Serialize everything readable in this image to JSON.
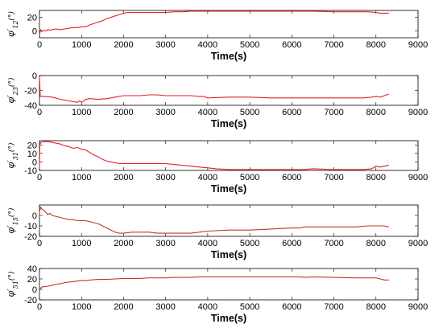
{
  "chart_data": [
    {
      "type": "line",
      "ylabel": "φ′12(°)",
      "xlabel": "Time(s)",
      "xlim": [
        0,
        9000
      ],
      "ylim": [
        -10,
        30
      ],
      "yticks": [
        0,
        20
      ],
      "xticks": [
        0,
        1000,
        2000,
        3000,
        4000,
        5000,
        6000,
        7000,
        8000,
        9000
      ],
      "color": "#e8202a",
      "series": [
        {
          "x": [
            0,
            30,
            60,
            100,
            150,
            200,
            250,
            300,
            400,
            500,
            600,
            700,
            800,
            900,
            1000,
            1100,
            1200,
            1300,
            1400,
            1500,
            1600,
            1700,
            1800,
            1900,
            2000,
            2100,
            2200,
            2400,
            2600,
            2800,
            3000,
            3200,
            3400,
            3600,
            3800,
            4000,
            4500,
            5000,
            5500,
            6000,
            6300,
            6500,
            7000,
            7500,
            7800,
            8000,
            8100,
            8200,
            8300
          ],
          "y": [
            -5,
            2,
            -1,
            1,
            0,
            2,
            1,
            2,
            3,
            2,
            3,
            4,
            5,
            5,
            6,
            6,
            9,
            11,
            13,
            15,
            18,
            20,
            22,
            24,
            26,
            27,
            27,
            27,
            27,
            27,
            27,
            28,
            28,
            29,
            29,
            29,
            29,
            29,
            29,
            29,
            29,
            29,
            28,
            28,
            28,
            27,
            26,
            26,
            26
          ]
        }
      ]
    },
    {
      "type": "line",
      "ylabel": "φ′23(°)",
      "xlabel": "Time(s)",
      "xlim": [
        0,
        9000
      ],
      "ylim": [
        -40,
        0
      ],
      "yticks": [
        -40,
        -20,
        0
      ],
      "xticks": [
        0,
        1000,
        2000,
        3000,
        4000,
        5000,
        6000,
        7000,
        8000,
        9000
      ],
      "color": "#e8202a",
      "series": [
        {
          "x": [
            0,
            20,
            100,
            300,
            500,
            700,
            900,
            950,
            1000,
            1100,
            1200,
            1400,
            1600,
            1800,
            2000,
            2200,
            2400,
            2600,
            2800,
            3000,
            3200,
            3400,
            3600,
            3800,
            3900,
            4000,
            4500,
            5000,
            5500,
            6000,
            6500,
            7000,
            7500,
            7700,
            7900,
            8000,
            8100,
            8200,
            8300
          ],
          "y": [
            -2,
            -28,
            -28,
            -29,
            -32,
            -34,
            -36,
            -34,
            -36,
            -32,
            -31,
            -32,
            -31,
            -29,
            -27,
            -27,
            -27,
            -26,
            -26,
            -27,
            -27,
            -27,
            -27,
            -28,
            -28,
            -30,
            -29,
            -29,
            -30,
            -30,
            -30,
            -30,
            -30,
            -30,
            -29,
            -28,
            -29,
            -27,
            -25
          ]
        }
      ]
    },
    {
      "type": "line",
      "ylabel": "φ′31(°)",
      "xlabel": "Time(s)",
      "xlim": [
        0,
        9000
      ],
      "ylim": [
        -10,
        25
      ],
      "yticks": [
        -10,
        0,
        10,
        20
      ],
      "xticks": [
        0,
        1000,
        2000,
        3000,
        4000,
        5000,
        6000,
        7000,
        8000,
        9000
      ],
      "color": "#e8202a",
      "series": [
        {
          "x": [
            0,
            10,
            30,
            100,
            200,
            300,
            400,
            500,
            600,
            700,
            800,
            900,
            1000,
            1100,
            1200,
            1300,
            1400,
            1500,
            1600,
            1700,
            1800,
            1900,
            2000,
            2200,
            2400,
            2600,
            2800,
            3000,
            3200,
            3400,
            3600,
            3800,
            4000,
            4200,
            4500,
            5000,
            5500,
            6000,
            6300,
            6500,
            7000,
            7500,
            7700,
            7900,
            8000,
            8100,
            8200,
            8300
          ],
          "y": [
            -8,
            20,
            23,
            24,
            24,
            23,
            22,
            21,
            19,
            18,
            16,
            17,
            15,
            14,
            11,
            8,
            6,
            3,
            1,
            0,
            -1,
            -2,
            -2,
            -2,
            -2,
            -2,
            -2,
            -2,
            -3,
            -4,
            -5,
            -6,
            -7,
            -8,
            -9,
            -9,
            -9,
            -9,
            -9,
            -8,
            -9,
            -9,
            -9,
            -8,
            -5,
            -6,
            -5,
            -4
          ]
        }
      ]
    },
    {
      "type": "line",
      "ylabel": "φ′15(°)",
      "xlabel": "Time(s)",
      "xlim": [
        0,
        9000
      ],
      "ylim": [
        -20,
        10
      ],
      "yticks": [
        -20,
        -10,
        0
      ],
      "xticks": [
        0,
        1000,
        2000,
        3000,
        4000,
        5000,
        6000,
        7000,
        8000,
        9000
      ],
      "color": "#c0392b",
      "series": [
        {
          "x": [
            0,
            30,
            60,
            100,
            150,
            200,
            250,
            300,
            400,
            500,
            600,
            700,
            800,
            900,
            1000,
            1100,
            1200,
            1300,
            1400,
            1500,
            1600,
            1700,
            1800,
            1900,
            2000,
            2200,
            2400,
            2600,
            2800,
            3000,
            3200,
            3400,
            3600,
            3800,
            4000,
            4500,
            5000,
            5500,
            6000,
            6200,
            6300,
            6500,
            7000,
            7500,
            7800,
            8000,
            8100,
            8200,
            8300
          ],
          "y": [
            3,
            8,
            6,
            5,
            3,
            1,
            2,
            0,
            -1,
            -2,
            -3,
            -4,
            -4,
            -5,
            -5,
            -5,
            -6,
            -7,
            -8,
            -10,
            -12,
            -14,
            -16,
            -17,
            -17,
            -16,
            -16,
            -16,
            -17,
            -17,
            -17,
            -17,
            -17,
            -16,
            -15,
            -14,
            -14,
            -13,
            -12,
            -12,
            -11,
            -11,
            -11,
            -11,
            -10,
            -10,
            -10,
            -10,
            -11
          ]
        }
      ]
    },
    {
      "type": "line",
      "ylabel": "φ′51(°)",
      "xlabel": "Time(s)",
      "xlim": [
        0,
        9000
      ],
      "ylim": [
        -20,
        40
      ],
      "yticks": [
        -20,
        0,
        20,
        40
      ],
      "xticks": [
        0,
        1000,
        2000,
        3000,
        4000,
        5000,
        6000,
        7000,
        8000,
        9000
      ],
      "color": "#c0392b",
      "series": [
        {
          "x": [
            0,
            30,
            60,
            100,
            200,
            300,
            400,
            500,
            600,
            700,
            800,
            900,
            1000,
            1100,
            1200,
            1400,
            1600,
            1800,
            2000,
            2200,
            2400,
            2600,
            2800,
            3000,
            3200,
            3400,
            3600,
            3800,
            4000,
            4500,
            5000,
            5500,
            6000,
            6200,
            6300,
            6500,
            7000,
            7500,
            7800,
            8000,
            8100,
            8200,
            8300
          ],
          "y": [
            4,
            2,
            5,
            5,
            6,
            8,
            10,
            11,
            13,
            14,
            15,
            16,
            17,
            17,
            18,
            19,
            19,
            20,
            21,
            21,
            21,
            22,
            22,
            22,
            23,
            23,
            23,
            24,
            24,
            24,
            24,
            24,
            24,
            24,
            23,
            24,
            23,
            22,
            22,
            22,
            20,
            18,
            18
          ]
        }
      ]
    }
  ]
}
